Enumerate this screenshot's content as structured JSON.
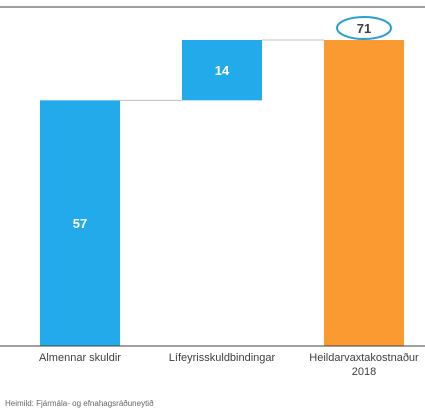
{
  "chart_data": {
    "type": "waterfall",
    "categories": [
      "Almennar skuldir",
      "Lífeyrisskuldbindingar",
      "Heildarvaxtakostnaður 2018"
    ],
    "category_label_lines": [
      [
        "Almennar skuldir"
      ],
      [
        "Lífeyrisskuldbindingar"
      ],
      [
        "Heildarvaxtakostnaður",
        "2018"
      ]
    ],
    "values": [
      57,
      14,
      71
    ],
    "bases": [
      0,
      57,
      0
    ],
    "data_labels": [
      "57",
      "14",
      "71"
    ],
    "highlighted_label": "71",
    "ylim": [
      0,
      71
    ],
    "colors": {
      "increase": "#22aaea",
      "total": "#fb9a31",
      "axis": "#404040",
      "connector": "#bfbfbf",
      "label": "#ffffff",
      "highlight": "#2b9fd6",
      "highlight_text": "#404040"
    }
  },
  "source": "Heimild: Fjármála- og efnahagsráðuneytið"
}
